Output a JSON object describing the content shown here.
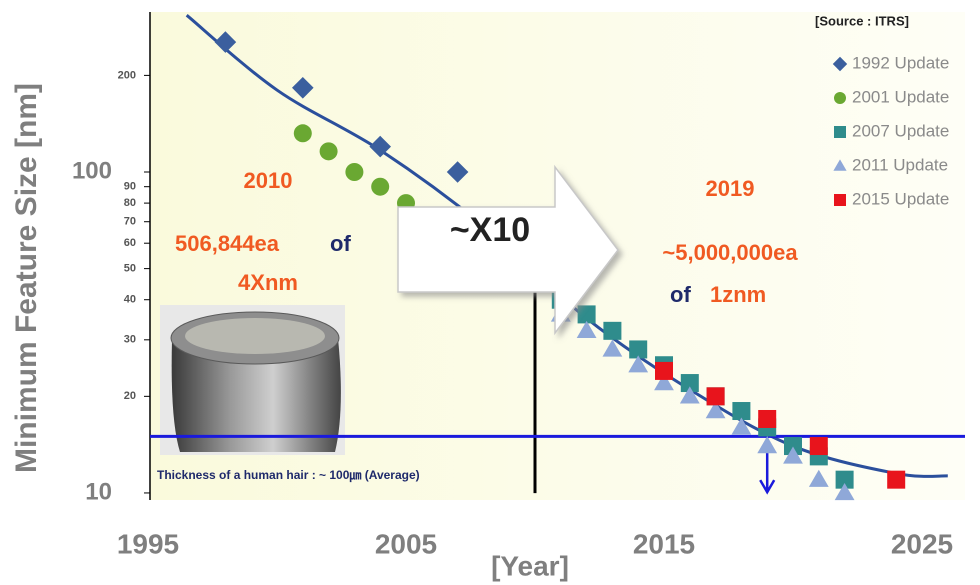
{
  "chart_data": {
    "type": "scatter",
    "ylabel": "Minimum Feature Size [nm]",
    "xlabel": "[Year]",
    "source": "[Source : ITRS]",
    "xlim": [
      1995,
      2026.5
    ],
    "xticks": [
      1995,
      2005,
      2015,
      2025
    ],
    "ylim": [
      9.5,
      310
    ],
    "log_y": true,
    "yticks": [
      10,
      20,
      30,
      40,
      50,
      60,
      70,
      80,
      90,
      100,
      200
    ],
    "series": [
      {
        "name": "1992 Update",
        "color": "#3b5f9e",
        "marker": "diamond",
        "x": [
          1998,
          2001,
          2004,
          2007
        ],
        "values": [
          254,
          183,
          120,
          100
        ]
      },
      {
        "name": "2001 Update",
        "color": "#6aa832",
        "marker": "circle",
        "x": [
          2001,
          2002,
          2003,
          2004,
          2005
        ],
        "values": [
          132,
          116,
          100,
          90,
          80
        ]
      },
      {
        "name": "2007 Update",
        "color": "#2f8c8c",
        "marker": "square",
        "x": [
          2009,
          2010,
          2011,
          2012,
          2013,
          2014,
          2015,
          2016,
          2017,
          2018,
          2019,
          2020,
          2021,
          2022
        ],
        "values": [
          50,
          45,
          40,
          36,
          32,
          28,
          25,
          22,
          20,
          18,
          16,
          14,
          13,
          11
        ]
      },
      {
        "name": "2011 Update",
        "color": "#8fa8d8",
        "marker": "triangle",
        "x": [
          2011,
          2012,
          2013,
          2014,
          2015,
          2016,
          2017,
          2018,
          2019,
          2020,
          2021,
          2022
        ],
        "values": [
          36,
          32,
          28,
          25,
          22,
          20,
          18,
          16,
          14,
          13,
          11,
          10
        ]
      },
      {
        "name": "2015 Update",
        "color": "#e8141c",
        "marker": "square",
        "x": [
          2015,
          2017,
          2019,
          2021,
          2024
        ],
        "values": [
          24,
          20,
          17,
          14,
          11
        ]
      }
    ],
    "trend": {
      "color": "#2b4f9c",
      "x": [
        1996.5,
        2000,
        2004,
        2008,
        2012,
        2016,
        2020,
        2024,
        2026
      ],
      "values": [
        308,
        180,
        117,
        68,
        35,
        21,
        14,
        11.5,
        11.3
      ]
    },
    "hline": {
      "value": 15,
      "color": "#1a1adc",
      "label": "Thickness of a human hair : ~ 100㎛ (Average)"
    },
    "vline": {
      "x": 2010,
      "value": 45
    },
    "arrow": {
      "x": 2019
    },
    "annotations": {
      "year_left": "2010",
      "count_left": "506,844ea",
      "of_left": "of",
      "node_left": "4Xnm",
      "factor": "~X10",
      "year_right": "2019",
      "count_right": "~5,000,000ea",
      "of_right": "of",
      "node_right": "1znm"
    }
  }
}
